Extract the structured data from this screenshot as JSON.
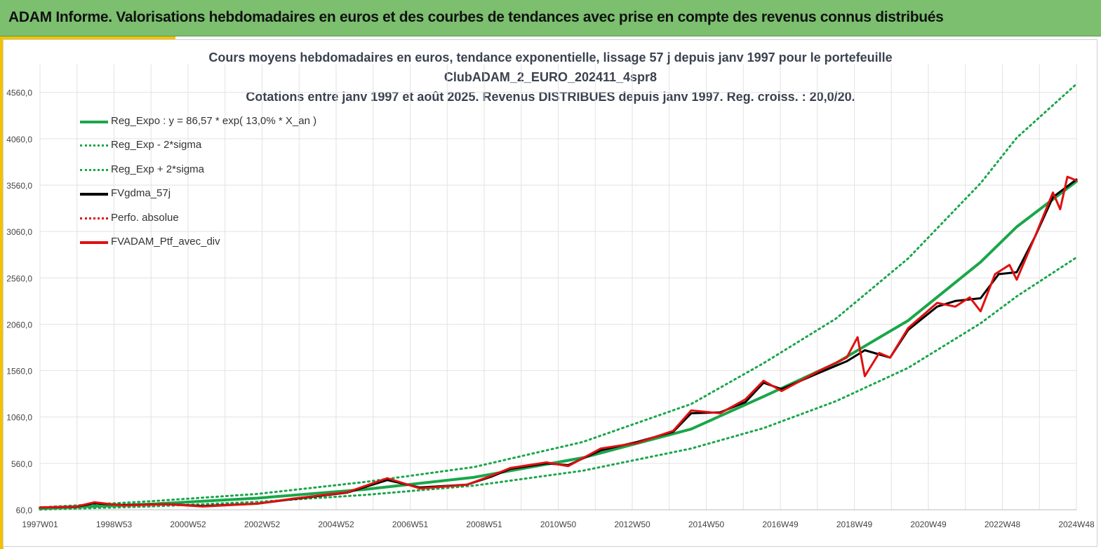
{
  "header": {
    "title": "ADAM Informe. Valorisations hebdomadaires en euros et des courbes de tendances avec prise en compte des revenus connus distribués"
  },
  "colors": {
    "banner": "#7bbf6f",
    "accent": "#f2c200",
    "trend": "#1aa64a",
    "trend_band": "#1aa64a",
    "smoothed": "#000000",
    "portfolio": "#e01010"
  },
  "chart_data": {
    "type": "line",
    "title_lines": [
      "Cours moyens hebdomadaires  en euros, tendance exponentielle, lissage 57 j depuis janv 1997 pour le portefeuille",
      "ClubADAM_2_EURO_202411_4spr8",
      "Cotations  entre janv 1997 et août 2025. Revenus DISTRIBUES depuis janv 1997. Reg. croiss. : 20,0/20."
    ],
    "xlabel": "",
    "ylabel": "",
    "x_ticks": [
      "1997W01",
      "1998W53",
      "2000W52",
      "2002W52",
      "2004W52",
      "2006W51",
      "2008W51",
      "2010W50",
      "2012W50",
      "2014W50",
      "2016W49",
      "2018W49",
      "2020W49",
      "2022W48",
      "2024W48"
    ],
    "x_range_years": [
      1997.0,
      2025.65
    ],
    "ylim": [
      60,
      4860
    ],
    "y_ticks": [
      "60,0",
      "560,0",
      "1060,0",
      "1560,0",
      "2060,0",
      "2560,0",
      "3060,0",
      "3560,0",
      "4060,0",
      "4560,0"
    ],
    "grid": true,
    "legend_position": "top-left",
    "legend": [
      {
        "label": "Reg_Expo : y = 86,57 * exp( 13,0% *  X_an )",
        "style": "solid",
        "color": "#1aa64a"
      },
      {
        "label": "Reg_Exp - 2*sigma",
        "style": "dotted",
        "color": "#1aa64a"
      },
      {
        "label": "Reg_Exp + 2*sigma",
        "style": "dotted",
        "color": "#1aa64a"
      },
      {
        "label": "FVgdma_57j",
        "style": "solid",
        "color": "#000000"
      },
      {
        "label": "Perfo. absolue",
        "style": "dotted",
        "color": "#e01010"
      },
      {
        "label": "FVADAM_Ptf_avec_div",
        "style": "solid",
        "color": "#e01010"
      }
    ],
    "series": [
      {
        "name": "Reg_Expo : y = 86,57 * exp( 13,0% *  X_an )",
        "x": [
          1997,
          2000,
          2003,
          2006,
          2009,
          2012,
          2015,
          2017,
          2019,
          2021,
          2023,
          2024,
          2025.65
        ],
        "values": [
          75,
          120,
          185,
          280,
          410,
          620,
          930,
          1280,
          1640,
          2100,
          2730,
          3110,
          3600
        ]
      },
      {
        "name": "Reg_Exp - 2*sigma",
        "x": [
          1997,
          2000,
          2003,
          2006,
          2009,
          2012,
          2015,
          2017,
          2019,
          2021,
          2023,
          2024,
          2025.65
        ],
        "values": [
          62,
          95,
          145,
          220,
          320,
          480,
          720,
          940,
          1230,
          1590,
          2070,
          2360,
          2780
        ]
      },
      {
        "name": "Reg_Exp + 2*sigma",
        "x": [
          1997,
          2000,
          2003,
          2006,
          2009,
          2012,
          2015,
          2017,
          2019,
          2021,
          2023,
          2024,
          2025.65
        ],
        "values": [
          85,
          150,
          230,
          360,
          520,
          790,
          1200,
          1640,
          2120,
          2770,
          3580,
          4070,
          4650
        ]
      },
      {
        "name": "FVgdma_57j",
        "x": [
          1997,
          1998,
          1998.5,
          1999.3,
          2000.5,
          2001.5,
          2003,
          2004,
          2005.5,
          2006.6,
          2007.5,
          2008.8,
          2009.5,
          2010,
          2011,
          2011.6,
          2012.5,
          2013.5,
          2014.5,
          2015,
          2015.8,
          2016.5,
          2017,
          2017.5,
          2018.5,
          2019.3,
          2019.8,
          2020.5,
          2021,
          2021.8,
          2022.3,
          2023,
          2023.5,
          2024,
          2024.5,
          2025,
          2025.65
        ],
        "values": [
          85,
          92,
          130,
          110,
          120,
          100,
          125,
          175,
          245,
          380,
          300,
          330,
          420,
          500,
          560,
          540,
          700,
          790,
          900,
          1100,
          1110,
          1220,
          1430,
          1360,
          1530,
          1660,
          1780,
          1700,
          2000,
          2250,
          2310,
          2340,
          2600,
          2620,
          3000,
          3430,
          3620
        ]
      },
      {
        "name": "FVADAM_Ptf_avec_div",
        "x": [
          1997,
          1998,
          1998.5,
          1999.3,
          2000.5,
          2001.5,
          2003,
          2004,
          2005.5,
          2006.6,
          2007.5,
          2008.8,
          2009.5,
          2010,
          2011,
          2011.6,
          2012.5,
          2013.5,
          2014.5,
          2015,
          2015.8,
          2016.5,
          2017,
          2017.5,
          2018.5,
          2019.3,
          2019.6,
          2019.8,
          2020.2,
          2020.5,
          2021,
          2021.8,
          2022.3,
          2022.7,
          2023,
          2023.4,
          2023.8,
          2024,
          2024.5,
          2025,
          2025.2,
          2025.4,
          2025.65
        ],
        "values": [
          85,
          95,
          140,
          105,
          120,
          95,
          125,
          180,
          250,
          400,
          290,
          330,
          430,
          510,
          570,
          530,
          720,
          780,
          910,
          1130,
          1100,
          1250,
          1450,
          1340,
          1550,
          1700,
          1920,
          1500,
          1750,
          1700,
          2020,
          2290,
          2250,
          2350,
          2200,
          2600,
          2700,
          2540,
          3000,
          3480,
          3300,
          3650,
          3610
        ]
      }
    ]
  }
}
